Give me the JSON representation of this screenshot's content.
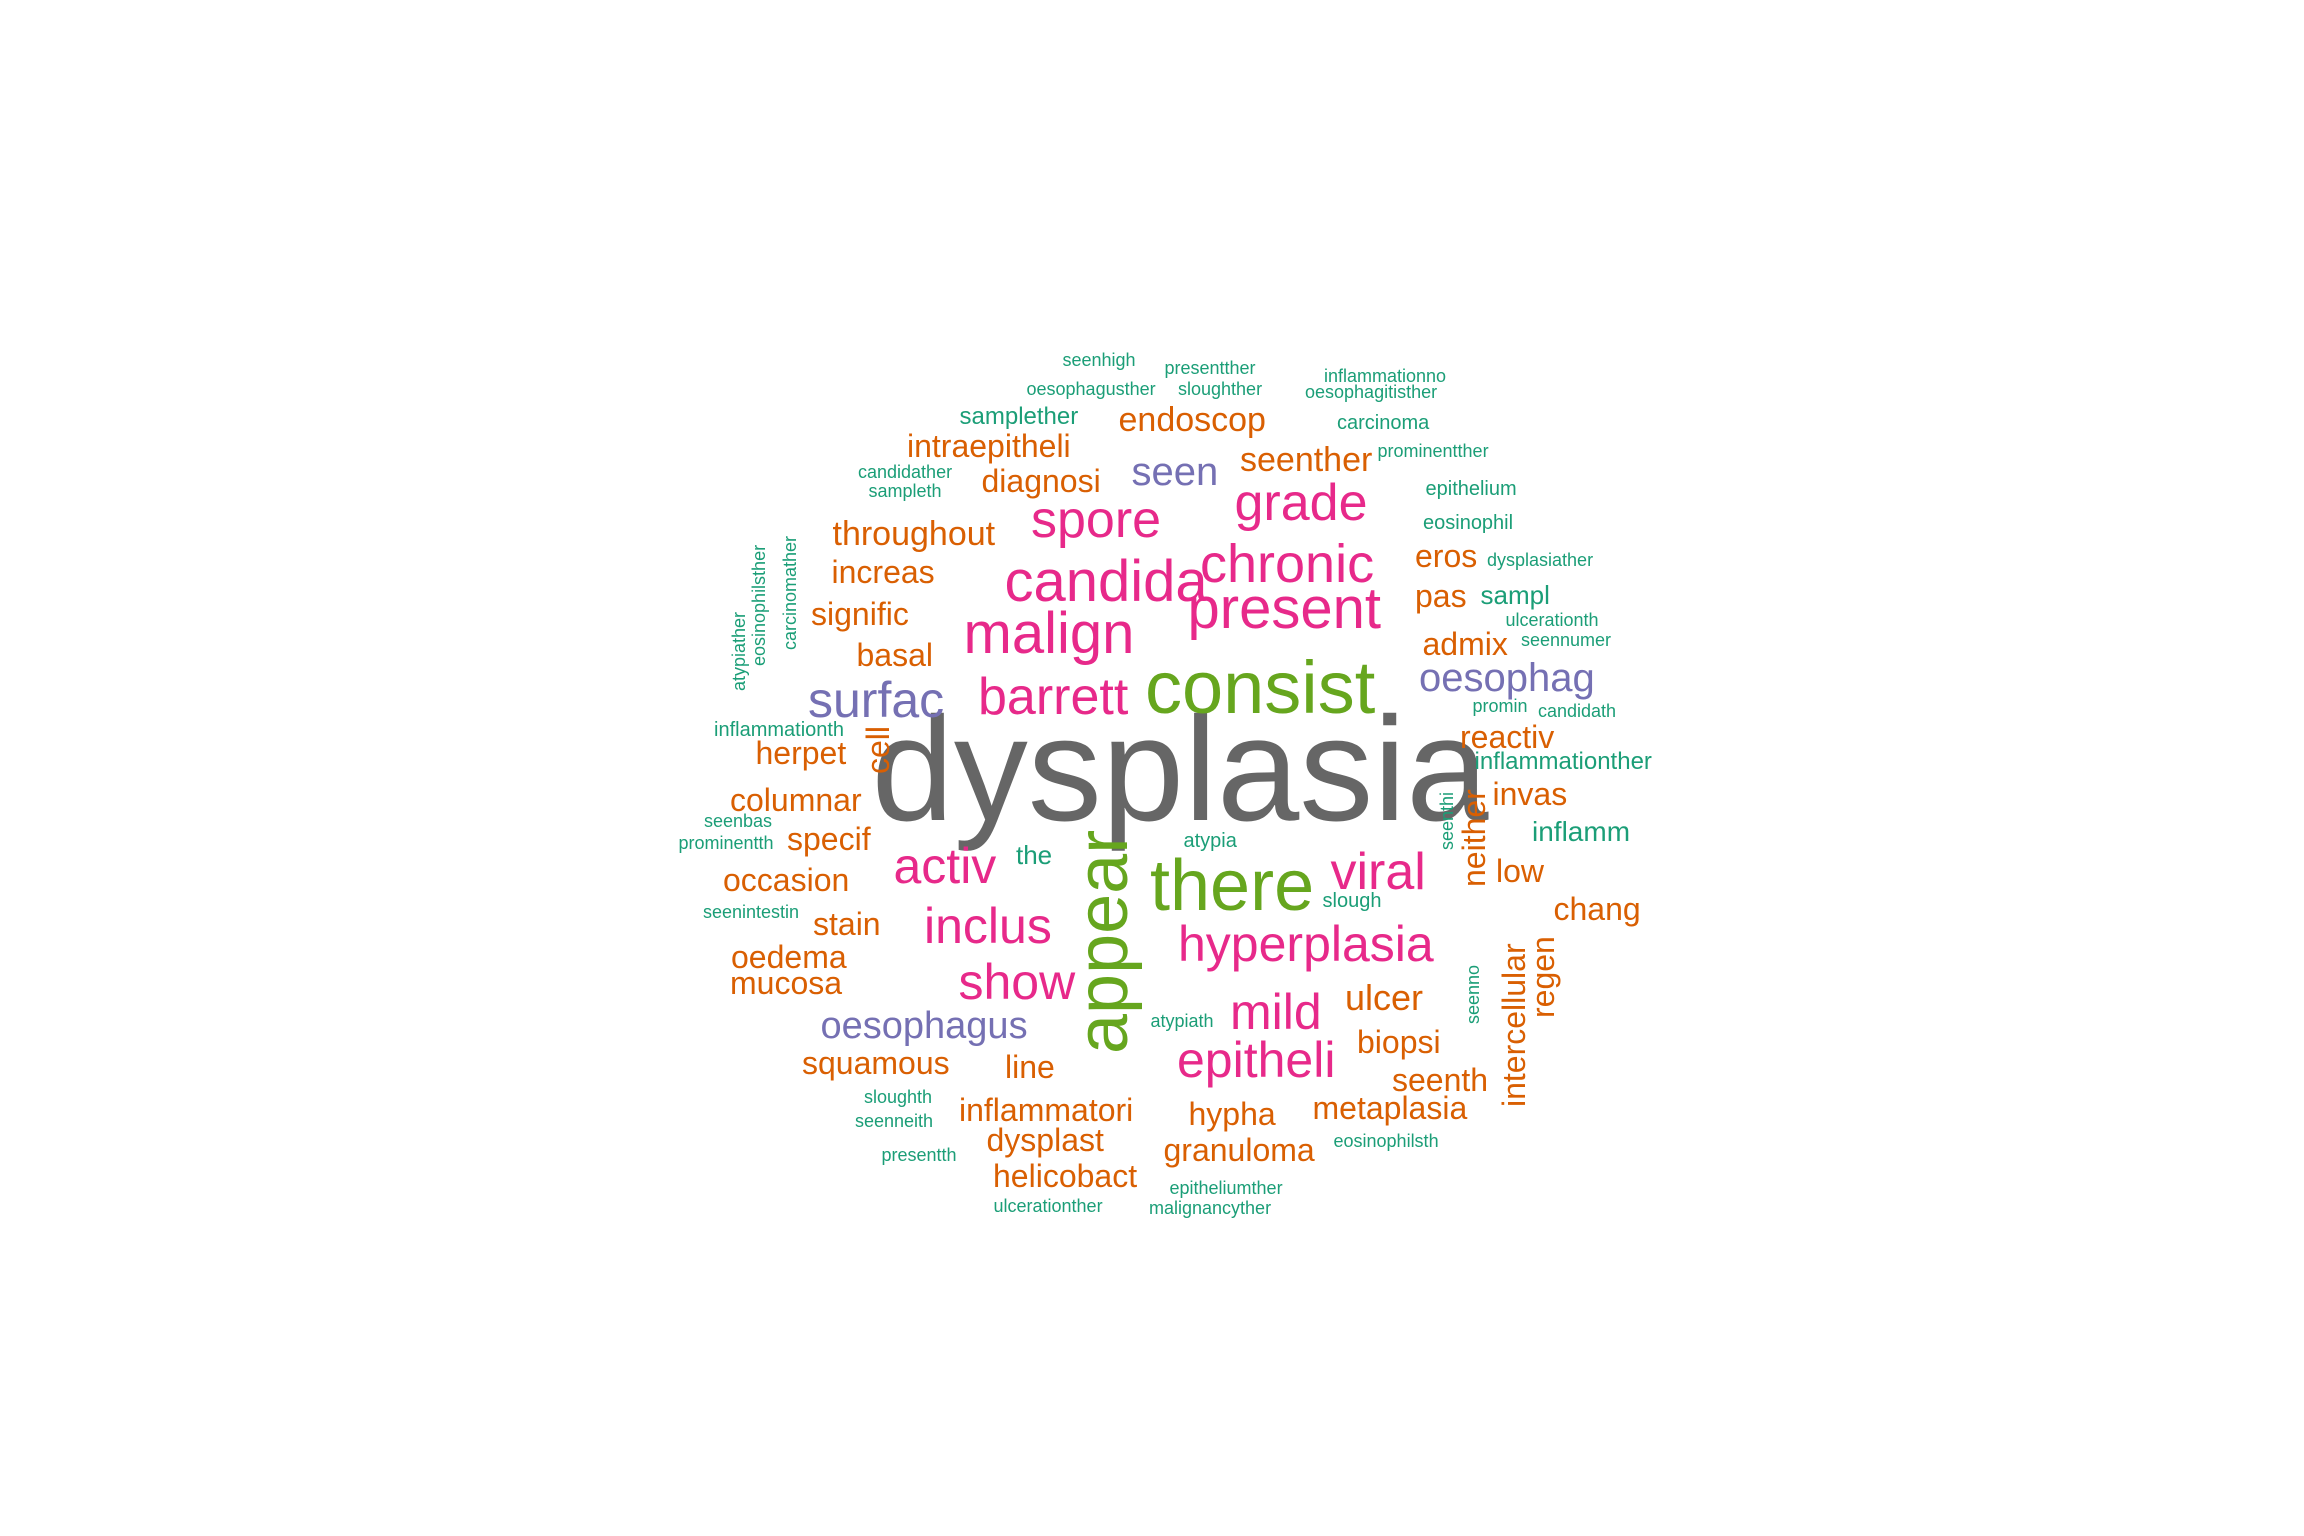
{
  "colors": {
    "gray": "#666666",
    "green": "#66a61e",
    "pink": "#e7298a",
    "purple": "#7570b3",
    "orange": "#d95f02",
    "teal": "#1b9e77"
  },
  "words": [
    {
      "text": "dysplasia",
      "color": "gray"
    },
    {
      "text": "consist",
      "color": "green"
    },
    {
      "text": "there",
      "color": "green"
    },
    {
      "text": "appear",
      "color": "green"
    },
    {
      "text": "present",
      "color": "pink"
    },
    {
      "text": "candida",
      "color": "pink"
    },
    {
      "text": "malign",
      "color": "pink"
    },
    {
      "text": "chronic",
      "color": "pink"
    },
    {
      "text": "barrett",
      "color": "pink"
    },
    {
      "text": "spore",
      "color": "pink"
    },
    {
      "text": "grade",
      "color": "pink"
    },
    {
      "text": "viral",
      "color": "pink"
    },
    {
      "text": "activ",
      "color": "pink"
    },
    {
      "text": "inclus",
      "color": "pink"
    },
    {
      "text": "hyperplasia",
      "color": "pink"
    },
    {
      "text": "show",
      "color": "pink"
    },
    {
      "text": "mild",
      "color": "pink"
    },
    {
      "text": "epitheli",
      "color": "pink"
    },
    {
      "text": "surfac",
      "color": "purple"
    },
    {
      "text": "seen",
      "color": "purple"
    },
    {
      "text": "oesophag",
      "color": "purple"
    },
    {
      "text": "oesophagus",
      "color": "purple"
    },
    {
      "text": "endoscop",
      "color": "orange"
    },
    {
      "text": "intraepitheli",
      "color": "orange"
    },
    {
      "text": "diagnosi",
      "color": "orange"
    },
    {
      "text": "seenther",
      "color": "orange"
    },
    {
      "text": "throughout",
      "color": "orange"
    },
    {
      "text": "increas",
      "color": "orange"
    },
    {
      "text": "signific",
      "color": "orange"
    },
    {
      "text": "basal",
      "color": "orange"
    },
    {
      "text": "eros",
      "color": "orange"
    },
    {
      "text": "pas",
      "color": "orange"
    },
    {
      "text": "admix",
      "color": "orange"
    },
    {
      "text": "reactiv",
      "color": "orange"
    },
    {
      "text": "herpet",
      "color": "orange"
    },
    {
      "text": "cell",
      "color": "orange"
    },
    {
      "text": "columnar",
      "color": "orange"
    },
    {
      "text": "invas",
      "color": "orange"
    },
    {
      "text": "specif",
      "color": "orange"
    },
    {
      "text": "occasion",
      "color": "orange"
    },
    {
      "text": "neither",
      "color": "orange"
    },
    {
      "text": "low",
      "color": "orange"
    },
    {
      "text": "stain",
      "color": "orange"
    },
    {
      "text": "chang",
      "color": "orange"
    },
    {
      "text": "oedema",
      "color": "orange"
    },
    {
      "text": "mucosa",
      "color": "orange"
    },
    {
      "text": "intercellular",
      "color": "orange"
    },
    {
      "text": "regen",
      "color": "orange"
    },
    {
      "text": "ulcer",
      "color": "orange"
    },
    {
      "text": "biopsi",
      "color": "orange"
    },
    {
      "text": "squamous",
      "color": "orange"
    },
    {
      "text": "line",
      "color": "orange"
    },
    {
      "text": "seenth",
      "color": "orange"
    },
    {
      "text": "inflammatori",
      "color": "orange"
    },
    {
      "text": "hypha",
      "color": "orange"
    },
    {
      "text": "metaplasia",
      "color": "orange"
    },
    {
      "text": "dysplast",
      "color": "orange"
    },
    {
      "text": "granuloma",
      "color": "orange"
    },
    {
      "text": "helicobact",
      "color": "orange"
    },
    {
      "text": "seenhigh",
      "color": "teal"
    },
    {
      "text": "presentther",
      "color": "teal"
    },
    {
      "text": "inflammationno",
      "color": "teal"
    },
    {
      "text": "oesophagusther",
      "color": "teal"
    },
    {
      "text": "sloughther",
      "color": "teal"
    },
    {
      "text": "oesophagitisther",
      "color": "teal"
    },
    {
      "text": "samplether",
      "color": "teal"
    },
    {
      "text": "carcinoma",
      "color": "teal"
    },
    {
      "text": "prominentther",
      "color": "teal"
    },
    {
      "text": "candidather",
      "color": "teal"
    },
    {
      "text": "sampleth",
      "color": "teal"
    },
    {
      "text": "epithelium",
      "color": "teal"
    },
    {
      "text": "eosinophil",
      "color": "teal"
    },
    {
      "text": "dysplasiather",
      "color": "teal"
    },
    {
      "text": "eosinophilsther",
      "color": "teal"
    },
    {
      "text": "carcinomather",
      "color": "teal"
    },
    {
      "text": "atypiather",
      "color": "teal"
    },
    {
      "text": "sampl",
      "color": "teal"
    },
    {
      "text": "ulcerationth",
      "color": "teal"
    },
    {
      "text": "seennumer",
      "color": "teal"
    },
    {
      "text": "promin",
      "color": "teal"
    },
    {
      "text": "candidath",
      "color": "teal"
    },
    {
      "text": "inflammationth",
      "color": "teal"
    },
    {
      "text": "inflammationther",
      "color": "teal"
    },
    {
      "text": "seenbas",
      "color": "teal"
    },
    {
      "text": "prominentth",
      "color": "teal"
    },
    {
      "text": "seenthi",
      "color": "teal"
    },
    {
      "text": "inflamm",
      "color": "teal"
    },
    {
      "text": "the",
      "color": "teal"
    },
    {
      "text": "atypia",
      "color": "teal"
    },
    {
      "text": "slough",
      "color": "teal"
    },
    {
      "text": "seenintestin",
      "color": "teal"
    },
    {
      "text": "seenno",
      "color": "teal"
    },
    {
      "text": "atypiath",
      "color": "teal"
    },
    {
      "text": "sloughth",
      "color": "teal"
    },
    {
      "text": "seenneith",
      "color": "teal"
    },
    {
      "text": "eosinophilsth",
      "color": "teal"
    },
    {
      "text": "presentth",
      "color": "teal"
    },
    {
      "text": "epitheliumther",
      "color": "teal"
    },
    {
      "text": "ulcerationther",
      "color": "teal"
    },
    {
      "text": "malignancyther",
      "color": "teal"
    }
  ]
}
